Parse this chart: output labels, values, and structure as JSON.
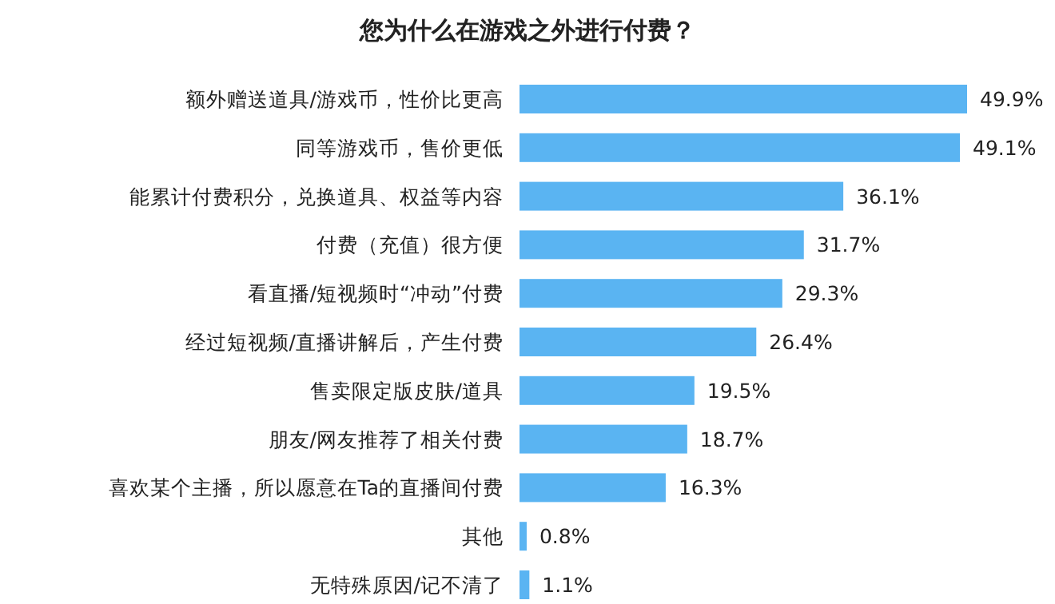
{
  "chart_data": {
    "type": "bar",
    "orientation": "horizontal",
    "title": "您为什么在游戏之外进行付费？",
    "categories": [
      "额外赠送道具/游戏币，性价比更高",
      "同等游戏币，售价更低",
      "能累计付费积分，兑换道具、权益等内容",
      "付费（充值）很方便",
      "看直播/短视频时“冲动”付费",
      "经过短视频/直播讲解后，产生付费",
      "售卖限定版皮肤/道具",
      "朋友/网友推荐了相关付费",
      "喜欢某个主播，所以愿意在Ta的直播间付费",
      "其他",
      "无特殊原因/记不清了"
    ],
    "values": [
      49.9,
      49.1,
      36.1,
      31.7,
      29.3,
      26.4,
      19.5,
      18.7,
      16.3,
      0.8,
      1.1
    ],
    "value_labels": [
      "49.9%",
      "49.1%",
      "36.1%",
      "31.7%",
      "29.3%",
      "26.4%",
      "19.5%",
      "18.7%",
      "16.3%",
      "0.8%",
      "1.1%"
    ],
    "color": "#5ab4f2"
  }
}
